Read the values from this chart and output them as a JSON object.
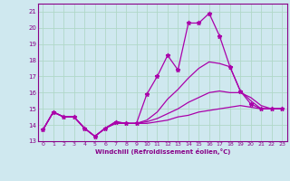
{
  "xlabel": "Windchill (Refroidissement éolien,°C)",
  "background_color": "#cfe8ef",
  "grid_color": "#b0d8c8",
  "line_color": "#aa00aa",
  "xlim": [
    -0.5,
    23.5
  ],
  "ylim": [
    13.0,
    21.5
  ],
  "xticks": [
    0,
    1,
    2,
    3,
    4,
    5,
    6,
    7,
    8,
    9,
    10,
    11,
    12,
    13,
    14,
    15,
    16,
    17,
    18,
    19,
    20,
    21,
    22,
    23
  ],
  "yticks": [
    13,
    14,
    15,
    16,
    17,
    18,
    19,
    20,
    21
  ],
  "series": [
    {
      "x": [
        0,
        1,
        2,
        3,
        4,
        5,
        6,
        7,
        8,
        9,
        10,
        11,
        12,
        13,
        14,
        15,
        16,
        17,
        18,
        19,
        20,
        21,
        22,
        23
      ],
      "y": [
        13.7,
        14.8,
        14.5,
        14.5,
        13.8,
        13.3,
        13.8,
        14.2,
        14.1,
        14.1,
        15.9,
        17.0,
        18.3,
        17.4,
        20.3,
        20.3,
        20.9,
        19.5,
        17.6,
        16.1,
        15.3,
        15.0,
        15.0,
        15.0
      ],
      "marker": true
    },
    {
      "x": [
        0,
        1,
        2,
        3,
        4,
        5,
        6,
        7,
        8,
        9,
        10,
        11,
        12,
        13,
        14,
        15,
        16,
        17,
        18,
        19,
        20,
        21,
        22,
        23
      ],
      "y": [
        13.7,
        14.8,
        14.5,
        14.5,
        13.8,
        13.3,
        13.8,
        14.2,
        14.1,
        14.1,
        14.3,
        14.8,
        15.6,
        16.2,
        16.9,
        17.5,
        17.9,
        17.8,
        17.6,
        16.1,
        15.5,
        15.0,
        15.0,
        15.0
      ],
      "marker": false
    },
    {
      "x": [
        0,
        1,
        2,
        3,
        4,
        5,
        6,
        7,
        8,
        9,
        10,
        11,
        12,
        13,
        14,
        15,
        16,
        17,
        18,
        19,
        20,
        21,
        22,
        23
      ],
      "y": [
        13.7,
        14.8,
        14.5,
        14.5,
        13.8,
        13.3,
        13.8,
        14.1,
        14.1,
        14.1,
        14.2,
        14.4,
        14.7,
        15.0,
        15.4,
        15.7,
        16.0,
        16.1,
        16.0,
        16.0,
        15.7,
        15.2,
        15.0,
        15.0
      ],
      "marker": false
    },
    {
      "x": [
        0,
        1,
        2,
        3,
        4,
        5,
        6,
        7,
        8,
        9,
        10,
        11,
        12,
        13,
        14,
        15,
        16,
        17,
        18,
        19,
        20,
        21,
        22,
        23
      ],
      "y": [
        13.7,
        14.8,
        14.5,
        14.5,
        13.8,
        13.3,
        13.8,
        14.1,
        14.1,
        14.1,
        14.1,
        14.2,
        14.3,
        14.5,
        14.6,
        14.8,
        14.9,
        15.0,
        15.1,
        15.2,
        15.1,
        15.0,
        15.0,
        15.0
      ],
      "marker": false
    }
  ]
}
